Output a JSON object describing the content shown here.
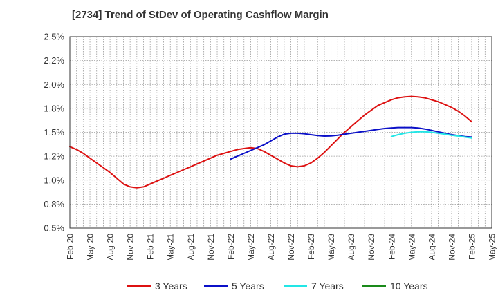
{
  "chart_data": {
    "type": "line",
    "title": "[2734]  Trend of StDev of Operating Cashflow Margin",
    "xlabel": "",
    "ylabel": "",
    "x_ticks": [
      "Feb-20",
      "May-20",
      "Aug-20",
      "Nov-20",
      "Feb-21",
      "May-21",
      "Aug-21",
      "Nov-21",
      "Feb-22",
      "May-22",
      "Aug-22",
      "Nov-22",
      "Feb-23",
      "May-23",
      "Aug-23",
      "Nov-23",
      "Feb-24",
      "May-24",
      "Aug-24",
      "Nov-24",
      "Feb-25",
      "May-25"
    ],
    "y_ticks": [
      "0.5%",
      "0.8%",
      "1.0%",
      "1.2%",
      "1.5%",
      "1.8%",
      "2.0%",
      "2.2%",
      "2.5%"
    ],
    "ylim": [
      0.5,
      2.5
    ],
    "grid": true,
    "legend_position": "bottom",
    "series": [
      {
        "name": "3 Years",
        "color": "#dd1111",
        "x": [
          "Feb-20",
          "Mar-20",
          "Apr-20",
          "May-20",
          "Jun-20",
          "Jul-20",
          "Aug-20",
          "Sep-20",
          "Oct-20",
          "Nov-20",
          "Dec-20",
          "Jan-21",
          "Feb-21",
          "Mar-21",
          "Apr-21",
          "May-21",
          "Jun-21",
          "Jul-21",
          "Aug-21",
          "Sep-21",
          "Oct-21",
          "Nov-21",
          "Dec-21",
          "Jan-22",
          "Feb-22",
          "Mar-22",
          "Apr-22",
          "May-22",
          "Jun-22",
          "Jul-22",
          "Aug-22",
          "Sep-22",
          "Oct-22",
          "Nov-22",
          "Dec-22",
          "Jan-23",
          "Feb-23",
          "Mar-23",
          "Apr-23",
          "May-23",
          "Jun-23",
          "Jul-23",
          "Aug-23",
          "Sep-23",
          "Oct-23",
          "Nov-23",
          "Dec-23",
          "Jan-24",
          "Feb-24",
          "Mar-24",
          "Apr-24",
          "May-24",
          "Jun-24",
          "Jul-24",
          "Aug-24",
          "Sep-24",
          "Oct-24",
          "Nov-24",
          "Dec-24",
          "Jan-25",
          "Feb-25"
        ],
        "values": [
          1.35,
          1.32,
          1.28,
          1.23,
          1.18,
          1.13,
          1.08,
          1.02,
          0.96,
          0.93,
          0.92,
          0.93,
          0.96,
          0.99,
          1.02,
          1.05,
          1.08,
          1.11,
          1.14,
          1.17,
          1.2,
          1.23,
          1.26,
          1.28,
          1.3,
          1.32,
          1.33,
          1.34,
          1.33,
          1.3,
          1.26,
          1.22,
          1.18,
          1.15,
          1.14,
          1.15,
          1.18,
          1.23,
          1.29,
          1.36,
          1.43,
          1.5,
          1.56,
          1.62,
          1.68,
          1.73,
          1.78,
          1.81,
          1.84,
          1.86,
          1.87,
          1.875,
          1.87,
          1.86,
          1.84,
          1.82,
          1.79,
          1.76,
          1.72,
          1.67,
          1.61
        ]
      },
      {
        "name": "5 Years",
        "color": "#0b10c8",
        "x": [
          "Feb-22",
          "Mar-22",
          "Apr-22",
          "May-22",
          "Jun-22",
          "Jul-22",
          "Aug-22",
          "Sep-22",
          "Oct-22",
          "Nov-22",
          "Dec-22",
          "Jan-23",
          "Feb-23",
          "Mar-23",
          "Apr-23",
          "May-23",
          "Jun-23",
          "Jul-23",
          "Aug-23",
          "Sep-23",
          "Oct-23",
          "Nov-23",
          "Dec-23",
          "Jan-24",
          "Feb-24",
          "Mar-24",
          "Apr-24",
          "May-24",
          "Jun-24",
          "Jul-24",
          "Aug-24",
          "Sep-24",
          "Oct-24",
          "Nov-24",
          "Dec-24",
          "Jan-25",
          "Feb-25"
        ],
        "values": [
          1.22,
          1.25,
          1.28,
          1.31,
          1.34,
          1.37,
          1.41,
          1.45,
          1.48,
          1.49,
          1.49,
          1.485,
          1.475,
          1.465,
          1.46,
          1.462,
          1.47,
          1.48,
          1.49,
          1.5,
          1.51,
          1.52,
          1.53,
          1.54,
          1.545,
          1.55,
          1.55,
          1.55,
          1.545,
          1.535,
          1.52,
          1.505,
          1.49,
          1.475,
          1.465,
          1.455,
          1.45
        ]
      },
      {
        "name": "7 Years",
        "color": "#22e6e6",
        "x": [
          "Feb-24",
          "Mar-24",
          "Apr-24",
          "May-24",
          "Jun-24",
          "Jul-24",
          "Aug-24",
          "Sep-24",
          "Oct-24",
          "Nov-24",
          "Dec-24",
          "Jan-25",
          "Feb-25"
        ],
        "values": [
          1.455,
          1.475,
          1.49,
          1.5,
          1.505,
          1.505,
          1.5,
          1.49,
          1.48,
          1.47,
          1.46,
          1.45,
          1.44
        ]
      },
      {
        "name": "10 Years",
        "color": "#1a8a1a",
        "x": [],
        "values": []
      }
    ]
  }
}
